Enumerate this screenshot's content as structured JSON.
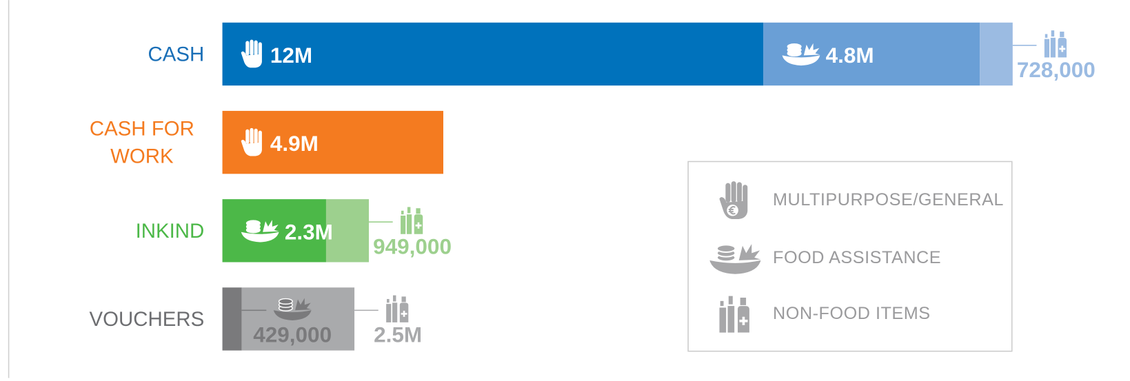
{
  "chart_data": {
    "type": "stacked-bar",
    "categories": [
      "CASH",
      "CASH FOR WORK",
      "INKIND",
      "VOUCHERS"
    ],
    "category_colors": [
      "#1a6fb7",
      "#f47b20",
      "#4cb848",
      "#6d6e71"
    ],
    "series": [
      {
        "name": "MULTIPURPOSE/GENERAL",
        "colors": [
          "#0072bc",
          "#f47b20",
          null,
          null
        ],
        "values": [
          12000000,
          4900000,
          null,
          null
        ],
        "value_labels": [
          "12M",
          "4.9M",
          null,
          null
        ]
      },
      {
        "name": "FOOD ASSISTANCE",
        "colors": [
          "#6a9fd6",
          null,
          "#4cb848",
          "#7a7a7c"
        ],
        "values": [
          4800000,
          null,
          2300000,
          429000
        ],
        "value_labels": [
          "4.8M",
          null,
          "2.3M",
          "429,000"
        ]
      },
      {
        "name": "NON-FOOD ITEMS",
        "colors": [
          "#9bbbe2",
          null,
          "#9dd08e",
          "#a9aaac"
        ],
        "values": [
          728000,
          null,
          949000,
          2500000
        ],
        "value_labels": [
          "728,000",
          null,
          "949,000",
          "2.5M"
        ]
      }
    ],
    "legend": true
  }
}
